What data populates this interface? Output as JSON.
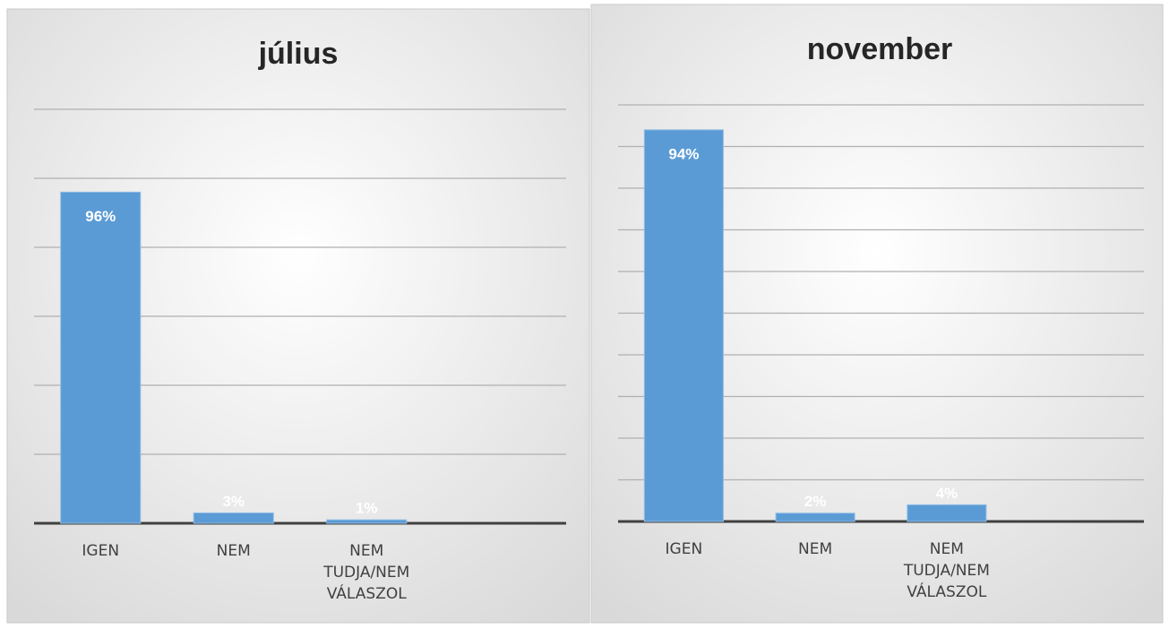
{
  "chart_data": [
    {
      "type": "bar",
      "title": "július",
      "categories": [
        "IGEN",
        "NEM",
        "NEM TUDJA/NEM VÁLASZOL",
        null
      ],
      "values": [
        96,
        3,
        1,
        null
      ],
      "value_labels": [
        "96%",
        "3%",
        "1%",
        null
      ],
      "color": "#5b9bd5",
      "ylim": [
        0,
        120
      ],
      "yticks": [
        0,
        20,
        40,
        60,
        80,
        100,
        120
      ],
      "grid": true
    },
    {
      "type": "bar",
      "title": "november",
      "categories": [
        "IGEN",
        "NEM",
        "NEM TUDJA/NEM VÁLASZOL",
        null
      ],
      "values": [
        94,
        2,
        4,
        null
      ],
      "value_labels": [
        "94%",
        "2%",
        "4%",
        null
      ],
      "color": "#5b9bd5",
      "ylim": [
        0,
        100
      ],
      "yticks": [
        0,
        10,
        20,
        30,
        40,
        50,
        60,
        70,
        80,
        90,
        100
      ],
      "grid": true
    }
  ]
}
